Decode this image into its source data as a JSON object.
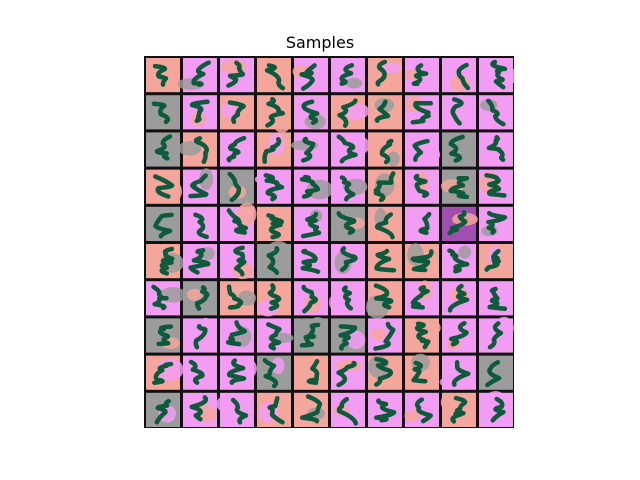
{
  "chart_data": {
    "type": "image_grid",
    "title": "Samples",
    "rows": 10,
    "cols": 10,
    "xlabel": "",
    "ylabel": "",
    "axes_visible": false,
    "tile_colors": {
      "salmon": "#f4a69c",
      "pink": "#f39cf4",
      "gray": "#9c9c9c",
      "purple": "#a04fb0",
      "ink": "#0d5a3c"
    },
    "tile_backgrounds": [
      [
        "salmon",
        "pink",
        "pink",
        "salmon",
        "pink",
        "pink",
        "salmon",
        "pink",
        "pink",
        "pink"
      ],
      [
        "gray",
        "pink",
        "salmon",
        "salmon",
        "pink",
        "salmon",
        "salmon",
        "pink",
        "pink",
        "pink"
      ],
      [
        "gray",
        "salmon",
        "pink",
        "salmon",
        "pink",
        "pink",
        "salmon",
        "pink",
        "gray",
        "pink"
      ],
      [
        "salmon",
        "pink",
        "gray",
        "pink",
        "pink",
        "pink",
        "salmon",
        "pink",
        "gray",
        "pink"
      ],
      [
        "gray",
        "pink",
        "pink",
        "salmon",
        "pink",
        "gray",
        "salmon",
        "pink",
        "purple",
        "pink"
      ],
      [
        "salmon",
        "pink",
        "pink",
        "gray",
        "pink",
        "pink",
        "salmon",
        "salmon",
        "pink",
        "salmon"
      ],
      [
        "pink",
        "gray",
        "salmon",
        "salmon",
        "pink",
        "pink",
        "salmon",
        "pink",
        "pink",
        "pink"
      ],
      [
        "gray",
        "pink",
        "pink",
        "pink",
        "gray",
        "gray",
        "pink",
        "salmon",
        "pink",
        "pink"
      ],
      [
        "salmon",
        "pink",
        "pink",
        "gray",
        "salmon",
        "pink",
        "salmon",
        "salmon",
        "pink",
        "gray"
      ],
      [
        "gray",
        "pink",
        "pink",
        "salmon",
        "salmon",
        "pink",
        "pink",
        "pink",
        "salmon",
        "pink"
      ]
    ]
  }
}
